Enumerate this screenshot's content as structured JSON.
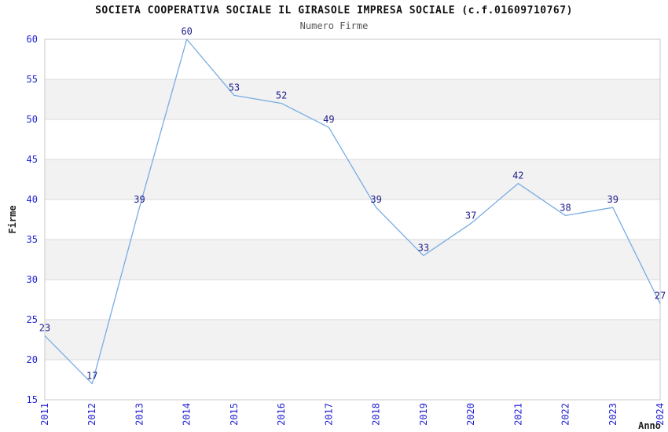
{
  "header": {
    "title": "SOCIETA COOPERATIVA SOCIALE IL GIRASOLE IMPRESA SOCIALE (c.f.01609710767)",
    "subtitle": "Numero Firme"
  },
  "chart_data": {
    "type": "line",
    "title": "SOCIETA COOPERATIVA SOCIALE IL GIRASOLE IMPRESA SOCIALE (c.f.01609710767)",
    "subtitle": "Numero Firme",
    "xlabel": "Anno",
    "ylabel": "Firme",
    "x": [
      2011,
      2012,
      2013,
      2014,
      2015,
      2016,
      2017,
      2018,
      2019,
      2020,
      2021,
      2022,
      2023,
      2024
    ],
    "series": [
      {
        "name": "Numero Firme",
        "values": [
          23,
          17,
          39,
          60,
          53,
          52,
          49,
          39,
          33,
          37,
          42,
          38,
          39,
          27
        ]
      }
    ],
    "ylim": [
      15,
      60
    ],
    "ytick_step": 5,
    "yticks": [
      15,
      20,
      25,
      30,
      35,
      40,
      45,
      50,
      55,
      60
    ],
    "grid": true,
    "alternating_bands": true,
    "legend_position": "none",
    "data_labels": true,
    "colors": {
      "line": "#79ace2",
      "tick_label": "#2323d6",
      "data_label": "#1c1c8a",
      "band": "#f2f2f2",
      "grid": "#d9d9d9",
      "border": "#c9c9c9",
      "title": "#111111",
      "subtitle": "#555555",
      "axis_label": "#222222",
      "background": "#ffffff"
    }
  }
}
